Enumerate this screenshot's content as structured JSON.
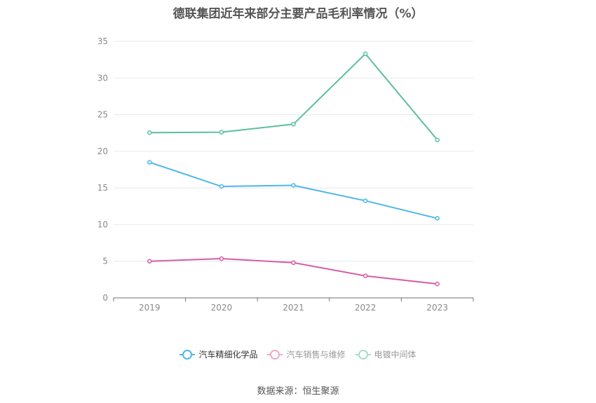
{
  "chart_data": {
    "type": "line",
    "title": "德联集团近年来部分主要产品毛利率情况（%）",
    "categories": [
      "2019",
      "2020",
      "2021",
      "2022",
      "2023"
    ],
    "series": [
      {
        "name": "汽车精细化学品",
        "values": [
          18.5,
          15.2,
          15.35,
          13.25,
          10.85
        ],
        "color": "#4db7ea",
        "legend_active": true
      },
      {
        "name": "汽车销售与维修",
        "values": [
          5.0,
          5.35,
          4.8,
          3.0,
          1.9
        ],
        "color": "#d65ca8",
        "legend_active": false
      },
      {
        "name": "电镀中间体",
        "values": [
          22.55,
          22.6,
          23.7,
          33.3,
          21.55
        ],
        "color": "#5bbf9f",
        "legend_active": false
      }
    ],
    "yticks": [
      0,
      5,
      10,
      15,
      20,
      25,
      30,
      35
    ],
    "ylim": [
      0,
      35
    ],
    "grid": true,
    "legend_position": "bottom"
  },
  "source": "数据来源：恒生聚源",
  "colors": {
    "legend_inactive_text": "#999999",
    "legend_active_text": "#333333",
    "legend_inactive_marker": [
      "#eeaacc",
      "#a8ddcd"
    ]
  }
}
